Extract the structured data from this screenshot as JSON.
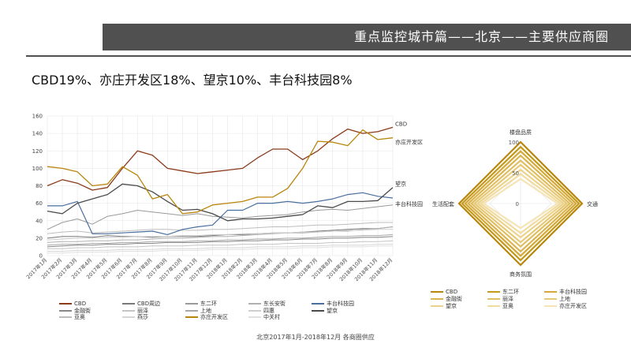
{
  "header": {
    "title": "重点监控城市篇——北京——主要供应商圈"
  },
  "headline": "CBD19%、亦庄开发区18%、望京10%、丰台科技园8%",
  "source_note": "北京2017年1月-2018年12月  各商圈供应",
  "colors": {
    "banner": "#505050"
  },
  "chart_data": [
    {
      "type": "line",
      "ylim": [
        0,
        160
      ],
      "yticks": [
        0,
        20,
        40,
        60,
        80,
        100,
        120,
        140,
        160
      ],
      "grid": true,
      "legend_position": "bottom",
      "categories": [
        "2017年1月",
        "2017年2月",
        "2017年3月",
        "2017年4月",
        "2017年5月",
        "2017年6月",
        "2017年7月",
        "2017年8月",
        "2017年9月",
        "2017年10月",
        "2017年11月",
        "2017年12月",
        "2018年1月",
        "2018年2月",
        "2018年3月",
        "2018年4月",
        "2018年5月",
        "2018年6月",
        "2018年7月",
        "2018年8月",
        "2018年9月",
        "2018年10月",
        "2018年11月",
        "2018年12月"
      ],
      "series": [
        {
          "name": "CBD",
          "color": "#8B3A1A",
          "width": 1.3,
          "label": "CBD",
          "values": [
            80,
            87,
            83,
            75,
            78,
            100,
            120,
            115,
            100,
            97,
            94,
            96,
            98,
            100,
            112,
            122,
            122,
            110,
            120,
            134,
            145,
            140,
            142,
            147
          ]
        },
        {
          "name": "CBD周边",
          "color": "#7a7a7a",
          "width": 1,
          "label": "",
          "values": [
            20,
            22,
            22,
            21,
            23,
            22,
            22,
            21,
            22,
            22,
            22,
            23,
            24,
            24,
            25,
            26,
            26,
            27,
            28,
            29,
            30,
            31,
            31,
            33
          ]
        },
        {
          "name": "东二环",
          "color": "#9a9a9a",
          "width": 1,
          "label": "",
          "values": [
            30,
            38,
            42,
            36,
            45,
            48,
            52,
            50,
            48,
            46,
            48,
            45,
            44,
            43,
            45,
            46,
            47,
            50,
            52,
            53,
            52,
            54,
            56,
            58
          ]
        },
        {
          "name": "东长安街",
          "color": "#b0b0b0",
          "width": 1,
          "label": "",
          "values": [
            15,
            16,
            16,
            17,
            17,
            18,
            18,
            19,
            20,
            20,
            21,
            22,
            22,
            23,
            24,
            25,
            26,
            26,
            27,
            28,
            28,
            30,
            31,
            33
          ]
        },
        {
          "name": "丰台科技园",
          "color": "#4a6f9e",
          "width": 1.2,
          "label": "",
          "values": [
            57,
            57,
            62,
            25,
            25,
            26,
            27,
            28,
            24,
            30,
            33,
            35,
            52,
            52,
            60,
            60,
            62,
            60,
            62,
            65,
            70,
            72,
            68,
            66
          ]
        },
        {
          "name": "金融街",
          "color": "#888888",
          "width": 1,
          "label": "",
          "values": [
            10,
            11,
            12,
            12,
            13,
            13,
            14,
            14,
            15,
            15,
            15,
            16,
            16,
            17,
            17,
            18,
            18,
            19,
            19,
            20,
            20,
            21,
            21,
            22
          ]
        },
        {
          "name": "丽泽",
          "color": "#c4c4c4",
          "width": 1,
          "label": "",
          "values": [
            8,
            8,
            9,
            9,
            10,
            10,
            10,
            11,
            11,
            11,
            12,
            12,
            12,
            13,
            13,
            13,
            14,
            14,
            14,
            15,
            15,
            16,
            16,
            17
          ]
        },
        {
          "name": "上地",
          "color": "#a8a8a8",
          "width": 1,
          "label": "",
          "values": [
            12,
            13,
            13,
            14,
            14,
            15,
            15,
            16,
            16,
            16,
            17,
            17,
            18,
            18,
            19,
            19,
            20,
            20,
            21,
            22,
            22,
            23,
            23,
            24
          ]
        },
        {
          "name": "四惠",
          "color": "#cfcfcf",
          "width": 1,
          "label": "",
          "values": [
            18,
            19,
            20,
            20,
            21,
            21,
            22,
            22,
            22,
            23,
            23,
            24,
            24,
            25,
            25,
            26,
            26,
            27,
            27,
            28,
            29,
            29,
            30,
            30
          ]
        },
        {
          "name": "望京",
          "color": "#4a4a4a",
          "width": 1.3,
          "label": "望京",
          "values": [
            51,
            48,
            60,
            65,
            70,
            82,
            80,
            73,
            62,
            52,
            53,
            48,
            40,
            42,
            42,
            43,
            45,
            47,
            57,
            55,
            62,
            62,
            63,
            78
          ]
        },
        {
          "name": "亚奥",
          "color": "#bdbdbd",
          "width": 1,
          "label": "",
          "values": [
            25,
            27,
            28,
            26,
            27,
            28,
            29,
            30,
            30,
            29,
            29,
            30,
            30,
            31,
            32,
            33,
            33,
            34,
            35,
            35,
            36,
            37,
            38,
            38
          ]
        },
        {
          "name": "燕莎",
          "color": "#d6d6d6",
          "width": 1,
          "label": "",
          "values": [
            5,
            5,
            6,
            6,
            6,
            7,
            7,
            7,
            8,
            8,
            8,
            9,
            9,
            9,
            10,
            10,
            10,
            11,
            11,
            12,
            12,
            12,
            13,
            13
          ]
        },
        {
          "name": "亦庄开发区",
          "color": "#B8860B",
          "width": 1.3,
          "label": "亦庄开发区",
          "values": [
            102,
            100,
            96,
            80,
            82,
            102,
            92,
            65,
            70,
            48,
            50,
            58,
            60,
            62,
            67,
            67,
            77,
            100,
            131,
            130,
            126,
            144,
            133,
            135
          ]
        },
        {
          "name": "中关村",
          "color": "#e0e0e0",
          "width": 1,
          "label": "",
          "values": [
            3,
            3,
            4,
            4,
            4,
            5,
            5,
            5,
            6,
            6,
            6,
            7,
            7,
            7,
            8,
            8,
            8,
            9,
            9,
            10,
            10,
            10,
            11,
            11
          ]
        }
      ],
      "end_labels": [
        {
          "text": "CBD",
          "series": "CBD"
        },
        {
          "text": "亦庄开发区",
          "series": "亦庄开发区"
        },
        {
          "text": "望京",
          "series": "望京"
        },
        {
          "text": "丰台科技园",
          "series": "丰台科技园"
        }
      ]
    },
    {
      "type": "radar",
      "axes": [
        "楼盘品质",
        "交通",
        "商务氛围",
        "生活配套"
      ],
      "rticks": [
        0,
        50,
        100
      ],
      "rmax": 100,
      "series": [
        {
          "name": "CBD",
          "color": "#B8860B",
          "values": [
            100,
            100,
            100,
            100
          ]
        },
        {
          "name": "东二环",
          "color": "#C49A1A",
          "values": [
            92,
            95,
            92,
            95
          ]
        },
        {
          "name": "丰台科技园",
          "color": "#D4A93A",
          "values": [
            85,
            90,
            85,
            90
          ]
        },
        {
          "name": "金融街",
          "color": "#DAB44E",
          "values": [
            78,
            85,
            78,
            85
          ]
        },
        {
          "name": "丽泽",
          "color": "#E0BE62",
          "values": [
            70,
            80,
            70,
            80
          ]
        },
        {
          "name": "上地",
          "color": "#E6C977",
          "values": [
            63,
            75,
            63,
            75
          ]
        },
        {
          "name": "望京",
          "color": "#EBD38C",
          "values": [
            55,
            70,
            55,
            70
          ]
        },
        {
          "name": "亚奥",
          "color": "#F0DCA1",
          "values": [
            48,
            65,
            48,
            65
          ]
        },
        {
          "name": "亦庄开发区",
          "color": "#F4E4B6",
          "values": [
            40,
            60,
            40,
            60
          ]
        }
      ]
    }
  ]
}
